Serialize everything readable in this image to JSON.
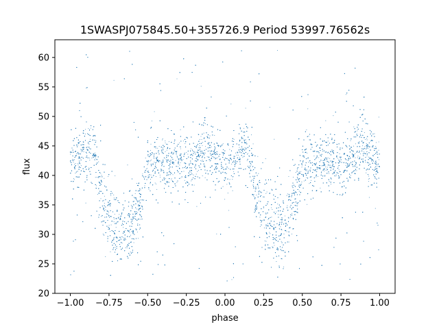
{
  "chart_data": {
    "type": "scatter",
    "title": "1SWASPJ075845.50+355726.9 Period 53997.76562s",
    "xlabel": "phase",
    "ylabel": "flux",
    "xlim": [
      -1.1,
      1.1
    ],
    "ylim": [
      20,
      63
    ],
    "xticks": [
      -1.0,
      -0.75,
      -0.5,
      -0.25,
      0.0,
      0.25,
      0.5,
      0.75,
      1.0
    ],
    "xtick_labels": [
      "−1.00",
      "−0.75",
      "−0.50",
      "−0.25",
      "0.00",
      "0.25",
      "0.50",
      "0.75",
      "1.00"
    ],
    "yticks": [
      20,
      25,
      30,
      35,
      40,
      45,
      50,
      55,
      60
    ],
    "ytick_labels": [
      "20",
      "25",
      "30",
      "35",
      "40",
      "45",
      "50",
      "55",
      "60"
    ],
    "grid": false,
    "point_color": "#1f77b4",
    "series": [
      {
        "phase_range": [
          -1.0,
          1.0
        ],
        "baseline_flux": 42.2,
        "baseline_scatter": 2.4,
        "flux_clip": [
          22,
          61.5
        ],
        "dips": [
          {
            "center_phase": -0.67,
            "min_flux": 29.0,
            "half_width_phase": 0.14
          },
          {
            "center_phase": 0.33,
            "min_flux": 29.0,
            "half_width_phase": 0.14
          }
        ],
        "bumps": [
          {
            "phase": -0.87,
            "flux": 51
          },
          {
            "phase": -0.12,
            "flux": 50
          },
          {
            "phase": 0.13,
            "flux": 50
          },
          {
            "phase": 0.88,
            "flux": 50
          }
        ]
      }
    ]
  }
}
